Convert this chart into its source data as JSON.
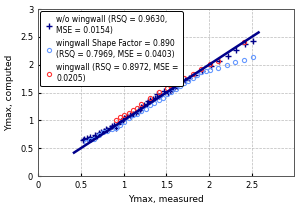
{
  "title": "",
  "xlabel": "Ymax, measured",
  "ylabel": "Ymax, computed",
  "xlim": [
    0,
    3
  ],
  "ylim": [
    0,
    3
  ],
  "xticks": [
    0,
    0.5,
    1.0,
    1.5,
    2.0,
    2.5
  ],
  "yticks": [
    0,
    0.5,
    1.0,
    1.5,
    2.0,
    2.5,
    3.0
  ],
  "line_x": [
    0.42,
    2.58
  ],
  "line_y": [
    0.42,
    2.58
  ],
  "line_color": "#00008B",
  "line_width": 1.8,
  "wo_wingwall": {
    "x": [
      0.52,
      0.54,
      0.57,
      0.59,
      0.61,
      0.64,
      0.67,
      0.69,
      0.71,
      0.74,
      0.77,
      0.79,
      0.81,
      0.84,
      0.87,
      0.89,
      0.91,
      0.94,
      0.97,
      0.99,
      1.01,
      1.04,
      1.07,
      1.09,
      1.11,
      1.14,
      1.17,
      1.19,
      1.21,
      1.24,
      1.27,
      1.29,
      1.31,
      1.34,
      1.37,
      1.39,
      1.42,
      1.44,
      1.47,
      1.52,
      1.54,
      1.57,
      1.59,
      1.62,
      1.64,
      1.67,
      1.72,
      1.77,
      1.84,
      1.92,
      2.02,
      2.12,
      2.22,
      2.32,
      2.42,
      2.52
    ],
    "y": [
      0.65,
      0.67,
      0.69,
      0.67,
      0.71,
      0.69,
      0.74,
      0.72,
      0.77,
      0.79,
      0.81,
      0.84,
      0.82,
      0.87,
      0.89,
      0.91,
      0.87,
      0.94,
      0.99,
      1.01,
      1.04,
      1.07,
      1.09,
      1.07,
      1.11,
      1.14,
      1.17,
      1.19,
      1.24,
      1.27,
      1.29,
      1.34,
      1.37,
      1.39,
      1.41,
      1.47,
      1.44,
      1.47,
      1.52,
      1.49,
      1.52,
      1.57,
      1.59,
      1.62,
      1.67,
      1.69,
      1.72,
      1.77,
      1.82,
      1.89,
      1.97,
      2.07,
      2.15,
      2.27,
      2.37,
      2.42
    ],
    "color": "#00008B",
    "marker": "+",
    "markersize": 4,
    "markeredgewidth": 1.0,
    "label": "w/o wingwall (RSQ = 0.9630,\nMSE = 0.0154)"
  },
  "ww_shape": {
    "x": [
      0.56,
      0.61,
      0.66,
      0.71,
      0.76,
      0.81,
      0.86,
      0.91,
      0.96,
      1.01,
      1.06,
      1.11,
      1.16,
      1.21,
      1.26,
      1.31,
      1.36,
      1.41,
      1.46,
      1.51,
      1.56,
      1.61,
      1.66,
      1.71,
      1.76,
      1.81,
      1.86,
      1.91,
      1.96,
      2.01,
      2.11,
      2.21,
      2.31,
      2.41,
      2.51
    ],
    "y": [
      0.61,
      0.64,
      0.67,
      0.74,
      0.79,
      0.81,
      0.84,
      0.87,
      0.91,
      0.97,
      1.04,
      1.09,
      1.11,
      1.17,
      1.21,
      1.27,
      1.31,
      1.37,
      1.41,
      1.47,
      1.51,
      1.57,
      1.61,
      1.67,
      1.71,
      1.77,
      1.81,
      1.87,
      1.89,
      1.91,
      1.94,
      1.99,
      2.04,
      2.09,
      2.14
    ],
    "color": "#6699FF",
    "marker": "o",
    "markersize": 3,
    "markerfacecolor": "none",
    "label": "wingwall Shape Factor = 0.890\n(RSQ = 0.7969, MSE = 0.0403)"
  },
  "wingwall": {
    "x": [
      0.91,
      0.96,
      1.01,
      1.06,
      1.11,
      1.16,
      1.21,
      1.31,
      1.41,
      1.51,
      1.56,
      1.61,
      1.71,
      1.81,
      1.91,
      2.01,
      2.11,
      2.41
    ],
    "y": [
      1.01,
      1.06,
      1.09,
      1.13,
      1.19,
      1.23,
      1.29,
      1.41,
      1.51,
      1.59,
      1.63,
      1.66,
      1.76,
      1.84,
      1.93,
      2.01,
      2.06,
      2.41
    ],
    "color": "#FF3333",
    "marker": "o",
    "markersize": 3,
    "markerfacecolor": "none",
    "label": "wingwall (RSQ = 0.8972, MSE =\n0.0205)"
  },
  "legend_fontsize": 5.5,
  "axis_fontsize": 6.5,
  "tick_fontsize": 6,
  "background_color": "#ffffff",
  "grid_color": "#bbbbbb",
  "grid_style": "--"
}
